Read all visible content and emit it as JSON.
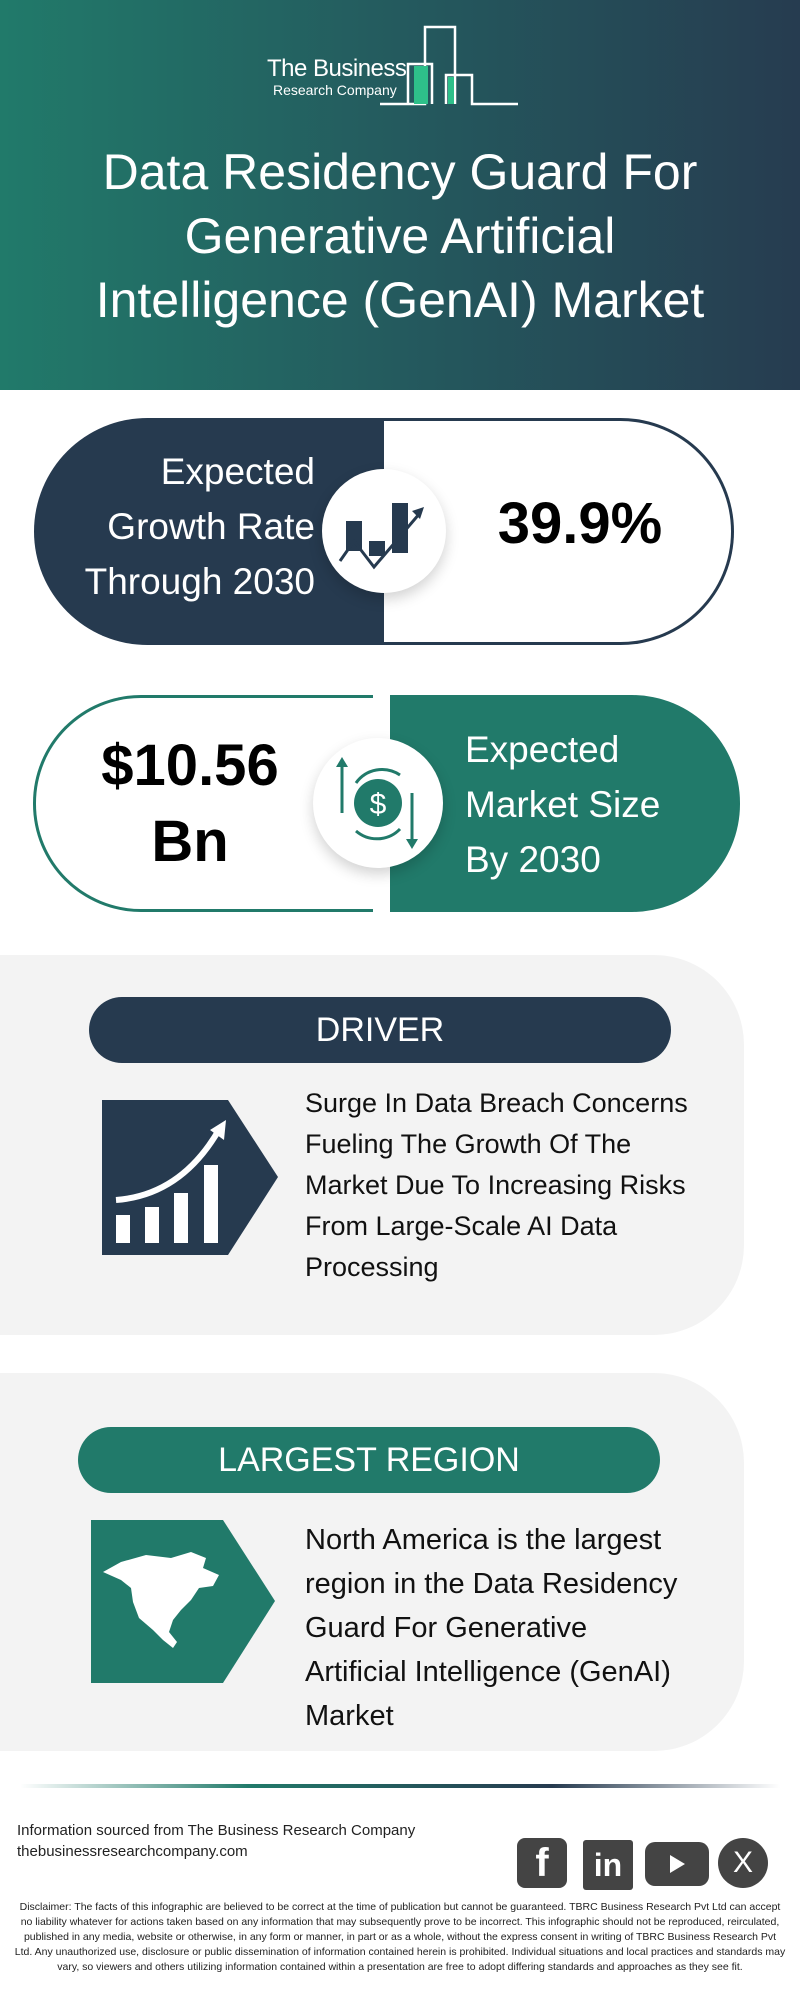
{
  "header": {
    "logo": {
      "line1": "The Business",
      "line2": "Research Company"
    },
    "title_lines": [
      "Data Residency Guard For",
      "Generative Artificial",
      "Intelligence (GenAI) Market"
    ]
  },
  "growth": {
    "label_lines": [
      "Expected",
      "Growth Rate",
      "Through 2030"
    ],
    "value": "39.9%",
    "icon": "growth-chart-icon"
  },
  "market_size": {
    "value_lines": [
      "$10.56",
      "Bn"
    ],
    "label_lines": [
      "Expected",
      "Market Size",
      "By 2030"
    ],
    "icon": "dollar-cycle-icon"
  },
  "driver": {
    "heading": "DRIVER",
    "icon": "rising-bar-chart-icon",
    "text_lines": [
      "Surge In Data Breach Concerns",
      "Fueling The Growth Of The",
      "Market Due To Increasing Risks",
      "From Large-Scale AI Data",
      "Processing"
    ]
  },
  "region": {
    "heading": "LARGEST REGION",
    "icon": "north-america-map-icon",
    "text_lines": [
      "North America is the largest",
      "region in the Data Residency",
      "Guard For Generative",
      "Artificial Intelligence (GenAI)",
      "Market"
    ]
  },
  "footer": {
    "source": "Information sourced from The Business Research Company",
    "website": "thebusinessresearchcompany.com",
    "social": {
      "facebook": "f",
      "linkedin": "in",
      "youtube": "youtube-icon",
      "x": "X"
    },
    "disclaimer": "Disclaimer: The facts of this infographic are believed to be correct at the time of publication but cannot be guaranteed. TBRC Business Research Pvt Ltd can accept no liability whatever for actions taken based on any information that may subsequently prove to be incorrect. This infographic should not be reproduced, reirculated, published in any media, website or otherwise, in any form or manner, in part or as a whole, without the express consent in writing of TBRC Business Research Pvt Ltd. Any unauthorized use, disclosure or public dissemination of information contained herein is prohibited. Individual situations and local practices and standards may vary, so viewers and others utilizing information contained within a presentation are free to adopt differing standards and approaches as they see fit."
  },
  "colors": {
    "navy": "#263a4f",
    "teal": "#217a6a",
    "section_bg": "#f3f3f3"
  }
}
